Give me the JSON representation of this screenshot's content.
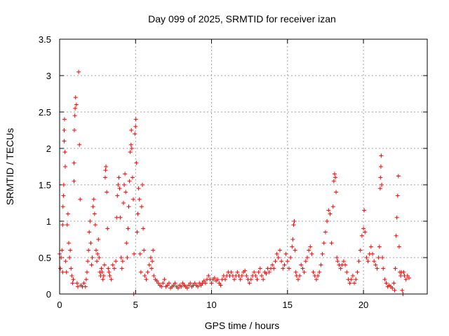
{
  "chart_data": {
    "type": "scatter",
    "title": "Day 099 of 2025, SRMTID for receiver izan",
    "xlabel": "GPS time / hours",
    "ylabel": "SRMTID / TECUs",
    "xlim": [
      0,
      24.2
    ],
    "ylim": [
      0,
      3.5
    ],
    "x_ticks": [
      0,
      5,
      10,
      15,
      20
    ],
    "x_tick_labels": [
      "0",
      "5",
      "10",
      "15",
      "20"
    ],
    "y_ticks": [
      0,
      0.5,
      1,
      1.5,
      2,
      2.5,
      3,
      3.5
    ],
    "y_tick_labels": [
      "0",
      "0.5",
      "1",
      "1.5",
      "2",
      "2.5",
      "3",
      "3.5"
    ],
    "grid": true,
    "marker": "+",
    "series": [
      {
        "name": "SRMTID",
        "color": "#ff0000",
        "points": [
          [
            0.0,
            0.55
          ],
          [
            0.05,
            0.35
          ],
          [
            0.1,
            0.5
          ],
          [
            0.15,
            0.6
          ],
          [
            0.2,
            0.3
          ],
          [
            0.2,
            0.95
          ],
          [
            0.22,
            1.2
          ],
          [
            0.25,
            1.35
          ],
          [
            0.27,
            1.5
          ],
          [
            0.3,
            2.1
          ],
          [
            0.3,
            2.25
          ],
          [
            0.32,
            2.4
          ],
          [
            0.35,
            1.95
          ],
          [
            0.37,
            1.75
          ],
          [
            0.4,
            0.45
          ],
          [
            0.45,
            0.3
          ],
          [
            0.5,
            0.95
          ],
          [
            0.55,
            1.1
          ],
          [
            0.6,
            0.7
          ],
          [
            0.65,
            0.5
          ],
          [
            0.7,
            0.6
          ],
          [
            0.75,
            0.35
          ],
          [
            0.8,
            0.25
          ],
          [
            0.85,
            0.15
          ],
          [
            0.9,
            0.2
          ],
          [
            0.95,
            1.55
          ],
          [
            0.95,
            1.8
          ],
          [
            0.97,
            2.25
          ],
          [
            1.0,
            2.45
          ],
          [
            1.02,
            2.55
          ],
          [
            1.05,
            2.7
          ],
          [
            1.1,
            2.6
          ],
          [
            1.15,
            0.15
          ],
          [
            1.2,
            0.1
          ],
          [
            1.25,
            3.05
          ],
          [
            1.3,
            2.05
          ],
          [
            1.35,
            1.3
          ],
          [
            1.4,
            0.12
          ],
          [
            1.5,
            0.1
          ],
          [
            1.6,
            0.15
          ],
          [
            1.7,
            0.1
          ],
          [
            1.75,
            0.2
          ],
          [
            1.8,
            0.3
          ],
          [
            1.85,
            0.45
          ],
          [
            1.9,
            0.6
          ],
          [
            1.95,
            0.85
          ],
          [
            2.0,
            1.0
          ],
          [
            2.05,
            0.7
          ],
          [
            2.1,
            0.4
          ],
          [
            2.15,
            0.5
          ],
          [
            2.2,
            1.2
          ],
          [
            2.25,
            1.3
          ],
          [
            2.3,
            1.1
          ],
          [
            2.35,
            0.95
          ],
          [
            2.4,
            0.6
          ],
          [
            2.45,
            0.45
          ],
          [
            2.5,
            0.55
          ],
          [
            2.55,
            0.75
          ],
          [
            2.6,
            0.5
          ],
          [
            2.65,
            0.3
          ],
          [
            2.7,
            0.25
          ],
          [
            2.75,
            0.35
          ],
          [
            2.8,
            0.3
          ],
          [
            2.85,
            0.2
          ],
          [
            2.9,
            0.25
          ],
          [
            2.95,
            0.4
          ],
          [
            3.0,
            1.6
          ],
          [
            3.02,
            1.7
          ],
          [
            3.05,
            1.75
          ],
          [
            3.1,
            1.4
          ],
          [
            3.15,
            0.9
          ],
          [
            3.2,
            0.35
          ],
          [
            3.25,
            0.3
          ],
          [
            3.3,
            0.25
          ],
          [
            3.4,
            0.2
          ],
          [
            3.5,
            0.4
          ],
          [
            3.6,
            0.35
          ],
          [
            3.7,
            0.45
          ],
          [
            3.75,
            1.05
          ],
          [
            3.8,
            1.35
          ],
          [
            3.85,
            1.5
          ],
          [
            3.9,
            1.6
          ],
          [
            3.95,
            1.45
          ],
          [
            4.0,
            1.05
          ],
          [
            4.05,
            0.5
          ],
          [
            4.1,
            0.35
          ],
          [
            4.15,
            0.45
          ],
          [
            4.2,
            1.25
          ],
          [
            4.25,
            1.5
          ],
          [
            4.3,
            1.65
          ],
          [
            4.35,
            1.4
          ],
          [
            4.4,
            0.7
          ],
          [
            4.45,
            0.5
          ],
          [
            4.5,
            0.9
          ],
          [
            4.55,
            1.2
          ],
          [
            4.6,
            1.55
          ],
          [
            4.65,
            1.95
          ],
          [
            4.7,
            2.05
          ],
          [
            4.72,
            2.25
          ],
          [
            4.75,
            2.0
          ],
          [
            4.8,
            1.6
          ],
          [
            4.85,
            1.3
          ],
          [
            4.88,
            0.0
          ],
          [
            4.9,
            0.55
          ],
          [
            4.95,
            2.2
          ],
          [
            5.0,
            2.3
          ],
          [
            5.02,
            2.4
          ],
          [
            5.05,
            1.8
          ],
          [
            5.1,
            0.85
          ],
          [
            5.15,
            1.1
          ],
          [
            5.2,
            1.45
          ],
          [
            5.25,
            1.3
          ],
          [
            5.3,
            0.55
          ],
          [
            5.35,
            0.3
          ],
          [
            5.4,
            1.2
          ],
          [
            5.45,
            1.5
          ],
          [
            5.5,
            0.9
          ],
          [
            5.55,
            0.6
          ],
          [
            5.6,
            0.25
          ],
          [
            5.7,
            0.2
          ],
          [
            5.8,
            0.3
          ],
          [
            5.9,
            0.4
          ],
          [
            6.0,
            0.5
          ],
          [
            6.05,
            0.35
          ],
          [
            6.1,
            0.45
          ],
          [
            6.15,
            0.6
          ],
          [
            6.2,
            0.25
          ],
          [
            6.3,
            0.2
          ],
          [
            6.4,
            0.18
          ],
          [
            6.5,
            0.15
          ],
          [
            6.6,
            0.12
          ],
          [
            6.7,
            0.1
          ],
          [
            6.8,
            0.15
          ],
          [
            6.9,
            0.2
          ],
          [
            7.0,
            0.1
          ],
          [
            7.1,
            0.12
          ],
          [
            7.2,
            0.15
          ],
          [
            7.3,
            0.08
          ],
          [
            7.4,
            0.1
          ],
          [
            7.5,
            0.12
          ],
          [
            7.6,
            0.15
          ],
          [
            7.7,
            0.1
          ],
          [
            7.8,
            0.08
          ],
          [
            7.9,
            0.12
          ],
          [
            8.0,
            0.1
          ],
          [
            8.1,
            0.15
          ],
          [
            8.2,
            0.12
          ],
          [
            8.3,
            0.1
          ],
          [
            8.4,
            0.08
          ],
          [
            8.5,
            0.12
          ],
          [
            8.6,
            0.15
          ],
          [
            8.7,
            0.1
          ],
          [
            8.8,
            0.12
          ],
          [
            8.9,
            0.15
          ],
          [
            9.0,
            0.12
          ],
          [
            9.1,
            0.1
          ],
          [
            9.2,
            0.15
          ],
          [
            9.3,
            0.12
          ],
          [
            9.4,
            0.15
          ],
          [
            9.5,
            0.18
          ],
          [
            9.6,
            0.15
          ],
          [
            9.7,
            0.2
          ],
          [
            9.8,
            0.25
          ],
          [
            9.9,
            0.2
          ],
          [
            10.0,
            0.15
          ],
          [
            10.1,
            0.2
          ],
          [
            10.2,
            0.22
          ],
          [
            10.3,
            0.18
          ],
          [
            10.4,
            0.2
          ],
          [
            10.5,
            0.15
          ],
          [
            10.6,
            0.12
          ],
          [
            10.7,
            0.2
          ],
          [
            10.8,
            0.25
          ],
          [
            10.9,
            0.2
          ],
          [
            11.0,
            0.25
          ],
          [
            11.1,
            0.3
          ],
          [
            11.2,
            0.25
          ],
          [
            11.3,
            0.3
          ],
          [
            11.4,
            0.25
          ],
          [
            11.5,
            0.2
          ],
          [
            11.6,
            0.25
          ],
          [
            11.7,
            0.3
          ],
          [
            11.8,
            0.25
          ],
          [
            11.9,
            0.2
          ],
          [
            12.0,
            0.25
          ],
          [
            12.1,
            0.3
          ],
          [
            12.2,
            0.32
          ],
          [
            12.3,
            0.25
          ],
          [
            12.4,
            0.2
          ],
          [
            12.5,
            0.15
          ],
          [
            12.6,
            0.2
          ],
          [
            12.7,
            0.25
          ],
          [
            12.8,
            0.3
          ],
          [
            12.9,
            0.25
          ],
          [
            13.0,
            0.2
          ],
          [
            13.1,
            0.3
          ],
          [
            13.2,
            0.35
          ],
          [
            13.3,
            0.25
          ],
          [
            13.4,
            0.2
          ],
          [
            13.5,
            0.3
          ],
          [
            13.6,
            0.28
          ],
          [
            13.7,
            0.35
          ],
          [
            13.8,
            0.3
          ],
          [
            13.9,
            0.35
          ],
          [
            14.0,
            0.4
          ],
          [
            14.1,
            0.35
          ],
          [
            14.2,
            0.45
          ],
          [
            14.3,
            0.55
          ],
          [
            14.4,
            0.5
          ],
          [
            14.5,
            0.6
          ],
          [
            14.6,
            0.45
          ],
          [
            14.7,
            0.35
          ],
          [
            14.8,
            0.4
          ],
          [
            14.9,
            0.55
          ],
          [
            15.0,
            0.45
          ],
          [
            15.1,
            0.35
          ],
          [
            15.2,
            0.5
          ],
          [
            15.3,
            0.65
          ],
          [
            15.35,
            0.75
          ],
          [
            15.4,
            0.95
          ],
          [
            15.45,
            1.0
          ],
          [
            15.5,
            0.6
          ],
          [
            15.55,
            0.3
          ],
          [
            15.6,
            0.25
          ],
          [
            15.7,
            0.2
          ],
          [
            15.8,
            0.25
          ],
          [
            15.9,
            0.4
          ],
          [
            16.0,
            0.35
          ],
          [
            16.1,
            0.3
          ],
          [
            16.2,
            0.45
          ],
          [
            16.3,
            0.5
          ],
          [
            16.4,
            0.6
          ],
          [
            16.5,
            0.65
          ],
          [
            16.6,
            0.55
          ],
          [
            16.7,
            0.3
          ],
          [
            16.8,
            0.25
          ],
          [
            16.9,
            0.2
          ],
          [
            17.0,
            0.25
          ],
          [
            17.1,
            0.3
          ],
          [
            17.2,
            0.4
          ],
          [
            17.3,
            0.55
          ],
          [
            17.4,
            0.7
          ],
          [
            17.5,
            0.85
          ],
          [
            17.6,
            1.0
          ],
          [
            17.7,
            1.15
          ],
          [
            17.8,
            1.1
          ],
          [
            17.9,
            0.7
          ],
          [
            18.0,
            1.2
          ],
          [
            18.05,
            1.55
          ],
          [
            18.1,
            1.65
          ],
          [
            18.15,
            1.6
          ],
          [
            18.2,
            1.4
          ],
          [
            18.25,
            0.5
          ],
          [
            18.3,
            0.45
          ],
          [
            18.4,
            0.4
          ],
          [
            18.5,
            0.35
          ],
          [
            18.6,
            0.4
          ],
          [
            18.7,
            0.45
          ],
          [
            18.8,
            0.4
          ],
          [
            18.9,
            0.3
          ],
          [
            19.0,
            0.2
          ],
          [
            19.1,
            0.15
          ],
          [
            19.2,
            0.2
          ],
          [
            19.3,
            0.25
          ],
          [
            19.4,
            0.15
          ],
          [
            19.5,
            0.2
          ],
          [
            19.6,
            0.3
          ],
          [
            19.7,
            0.45
          ],
          [
            19.8,
            0.6
          ],
          [
            19.9,
            0.8
          ],
          [
            20.0,
            0.9
          ],
          [
            20.05,
            1.15
          ],
          [
            20.1,
            0.85
          ],
          [
            20.2,
            0.5
          ],
          [
            20.3,
            0.45
          ],
          [
            20.4,
            0.55
          ],
          [
            20.5,
            0.65
          ],
          [
            20.6,
            0.55
          ],
          [
            20.7,
            0.45
          ],
          [
            20.8,
            0.4
          ],
          [
            20.9,
            0.35
          ],
          [
            21.0,
            0.5
          ],
          [
            21.05,
            0.65
          ],
          [
            21.1,
            1.45
          ],
          [
            21.12,
            1.6
          ],
          [
            21.15,
            1.75
          ],
          [
            21.17,
            1.9
          ],
          [
            21.2,
            1.5
          ],
          [
            21.25,
            0.5
          ],
          [
            21.3,
            0.35
          ],
          [
            21.4,
            0.2
          ],
          [
            21.5,
            0.15
          ],
          [
            21.6,
            0.1
          ],
          [
            21.7,
            0.12
          ],
          [
            21.8,
            0.1
          ],
          [
            21.9,
            0.08
          ],
          [
            22.0,
            0.15
          ],
          [
            22.05,
            0.05
          ],
          [
            22.1,
            0.35
          ],
          [
            22.15,
            0.8
          ],
          [
            22.2,
            1.05
          ],
          [
            22.25,
            1.35
          ],
          [
            22.3,
            1.62
          ],
          [
            22.35,
            0.65
          ],
          [
            22.4,
            0.3
          ],
          [
            22.45,
            0.25
          ],
          [
            22.5,
            0.3
          ],
          [
            22.55,
            0.05
          ],
          [
            22.6,
            0.0
          ],
          [
            22.65,
            0.3
          ],
          [
            22.7,
            0.25
          ],
          [
            22.8,
            0.2
          ],
          [
            22.9,
            0.25
          ],
          [
            23.0,
            0.22
          ]
        ]
      }
    ]
  }
}
